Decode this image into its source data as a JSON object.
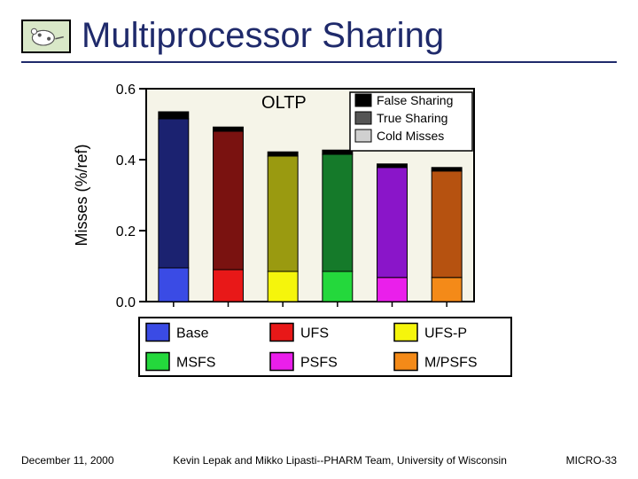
{
  "title": "Multiprocessor Sharing",
  "title_color": "#1f2a6b",
  "underline_color": "#1f2a6b",
  "footer": {
    "date": "December 11, 2000",
    "center": "Kevin Lepak and Mikko Lipasti--PHARM Team, University of Wisconsin",
    "right": "MICRO-33"
  },
  "chart": {
    "plot_title": "OLTP",
    "ylabel": "Misses (%/ref)",
    "ylim": [
      0.0,
      0.6
    ],
    "yticks": [
      0.0,
      0.2,
      0.4,
      0.6
    ],
    "plot_bg": "#f5f4e8",
    "outer_bg": "#ffffff",
    "axis_color": "#000000",
    "tick_font_size": 16,
    "label_font_size": 18,
    "plot_title_font_size": 20,
    "categories": [
      {
        "name": "Base",
        "light": "#3a4be5",
        "dark": "#1b2270"
      },
      {
        "name": "UFS",
        "light": "#e81818",
        "dark": "#7a1210"
      },
      {
        "name": "UFS-P",
        "light": "#f5f50c",
        "dark": "#9a9a10"
      },
      {
        "name": "MSFS",
        "light": "#24d83c",
        "dark": "#157a2a"
      },
      {
        "name": "PSFS",
        "light": "#ea1feb",
        "dark": "#8a15c9"
      },
      {
        "name": "M/PSFS",
        "light": "#f48a18",
        "dark": "#b65210"
      }
    ],
    "stacks": [
      {
        "cold": 0.095,
        "true": 0.42,
        "false": 0.02
      },
      {
        "cold": 0.09,
        "true": 0.39,
        "false": 0.012
      },
      {
        "cold": 0.085,
        "true": 0.325,
        "false": 0.012
      },
      {
        "cold": 0.085,
        "true": 0.33,
        "false": 0.012
      },
      {
        "cold": 0.068,
        "true": 0.31,
        "false": 0.01
      },
      {
        "cold": 0.068,
        "true": 0.3,
        "false": 0.01
      }
    ],
    "bar_width": 0.55,
    "stack_legend": [
      {
        "label": "False Sharing",
        "color": "#000000"
      },
      {
        "label": "True Sharing",
        "color": "#555555"
      },
      {
        "label": "Cold Misses",
        "color": "#d0d0d0"
      }
    ],
    "category_legend_border": "#000000"
  }
}
